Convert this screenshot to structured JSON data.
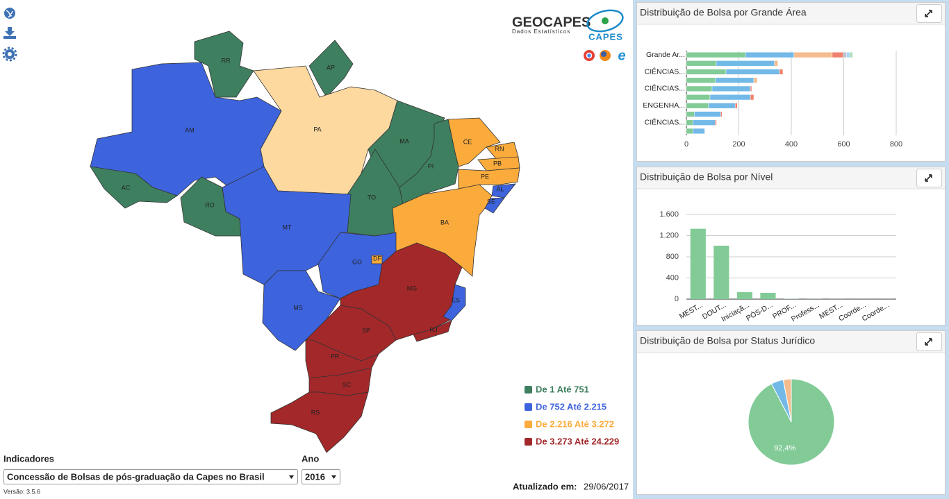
{
  "logo": {
    "title": "GEOCAPES",
    "subtitle": "Dados Estatísticos",
    "brand": "CAPES"
  },
  "map": {
    "selected_color": "#fdd9a0",
    "states": [
      {
        "label": "RR",
        "class": 0
      },
      {
        "label": "AP",
        "class": 0
      },
      {
        "label": "AM",
        "class": 1
      },
      {
        "label": "PA",
        "class": null
      },
      {
        "label": "MA",
        "class": 0
      },
      {
        "label": "CE",
        "class": 2
      },
      {
        "label": "RN",
        "class": 2
      },
      {
        "label": "PB",
        "class": 2
      },
      {
        "label": "PI",
        "class": 0
      },
      {
        "label": "PE",
        "class": 2
      },
      {
        "label": "AL",
        "class": 1
      },
      {
        "label": "SE",
        "class": 1
      },
      {
        "label": "AC",
        "class": 0
      },
      {
        "label": "RO",
        "class": 0
      },
      {
        "label": "TO",
        "class": 0
      },
      {
        "label": "BA",
        "class": 2
      },
      {
        "label": "MT",
        "class": 1
      },
      {
        "label": "GO",
        "class": 1
      },
      {
        "label": "DF",
        "class": 2
      },
      {
        "label": "MS",
        "class": 1
      },
      {
        "label": "MG",
        "class": 3
      },
      {
        "label": "ES",
        "class": 1
      },
      {
        "label": "SP",
        "class": 3
      },
      {
        "label": "RJ",
        "class": 3
      },
      {
        "label": "PR",
        "class": 3
      },
      {
        "label": "SC",
        "class": 3
      },
      {
        "label": "RS",
        "class": 3
      }
    ],
    "legend": [
      {
        "label": "De 1 Até 751",
        "color": "#3e7f5f"
      },
      {
        "label": "De 752 Até 2.215",
        "color": "#3d63dd"
      },
      {
        "label": "De 2.216 Até 3.272",
        "color": "#fbab3c"
      },
      {
        "label": "De 3.273 Até 24.229",
        "color": "#a3282a"
      }
    ]
  },
  "controls": {
    "indicator_label": "Indicadores",
    "indicator_value": "Concessão de Bolsas de pós-graduação da Capes no Brasil",
    "year_label": "Ano",
    "year_value": "2016",
    "version": "Versão: 3.5.6"
  },
  "updated": {
    "label": "Atualizado em:",
    "value": "29/06/2017"
  },
  "chart_data": [
    {
      "type": "hbar",
      "title": "Distribuição de Bolsa por Grande Área",
      "stacked": true,
      "grid": true,
      "categories": [
        "Grande Ar...",
        null,
        "CIÊNCIAS...",
        null,
        "CIÊNCIAS...",
        null,
        "ENGENHA...",
        null,
        "CIÊNCIAS...",
        null
      ],
      "xlim": [
        0,
        800
      ],
      "xticks": [
        0,
        200,
        400,
        600,
        800
      ],
      "series": [
        {
          "color": "#82cb97",
          "values": [
            225,
            114,
            151,
            111,
            98,
            90,
            85,
            30,
            25,
            25
          ]
        },
        {
          "color": "#72b9e8",
          "values": [
            185,
            222,
            204,
            146,
            146,
            154,
            101,
            101,
            85,
            45
          ]
        },
        {
          "color": "#f6bb8d",
          "values": [
            146,
            13,
            null,
            13,
            null,
            null,
            null,
            null,
            null,
            null
          ]
        },
        {
          "color": "#f0816c",
          "values": [
            42,
            null,
            13,
            null,
            5,
            13,
            8,
            5,
            5,
            null
          ]
        },
        {
          "color": "#b9c2cc",
          "values": [
            13,
            null,
            null,
            null,
            null,
            null,
            null,
            null,
            null,
            null
          ]
        },
        {
          "color": "#a9d6f2",
          "values": [
            13,
            null,
            null,
            null,
            null,
            null,
            null,
            null,
            null,
            null
          ]
        },
        {
          "color": "#a8dbb4",
          "values": [
            10,
            null,
            null,
            null,
            null,
            null,
            null,
            null,
            null,
            null
          ]
        }
      ]
    },
    {
      "type": "bar",
      "title": "Distribuição de Bolsa por Nível",
      "grid": true,
      "color": "#82cb97",
      "categories": [
        "MEST...",
        "DOUT...",
        "Iniciaçã...",
        "PÓS-D...",
        "PROF...",
        "Profess...",
        "MEST...",
        "Coorde...",
        "Coorde..."
      ],
      "values": [
        1330,
        1010,
        131,
        118,
        5,
        3,
        2,
        1,
        1
      ],
      "ylim": [
        0,
        1600
      ],
      "yticks": [
        0,
        400,
        800,
        {
          "value": 1200,
          "label": "1.200"
        },
        {
          "value": 1600,
          "label": "1.600"
        }
      ]
    },
    {
      "type": "pie",
      "title": "Distribuição de Bolsa por Status Jurídico",
      "colors": [
        "#82cb97",
        "#72b9e8",
        "#f6bb8d"
      ],
      "values": [
        92.4,
        4.6,
        3.0
      ],
      "value_labels": [
        "92,4%",
        null,
        null
      ]
    }
  ]
}
